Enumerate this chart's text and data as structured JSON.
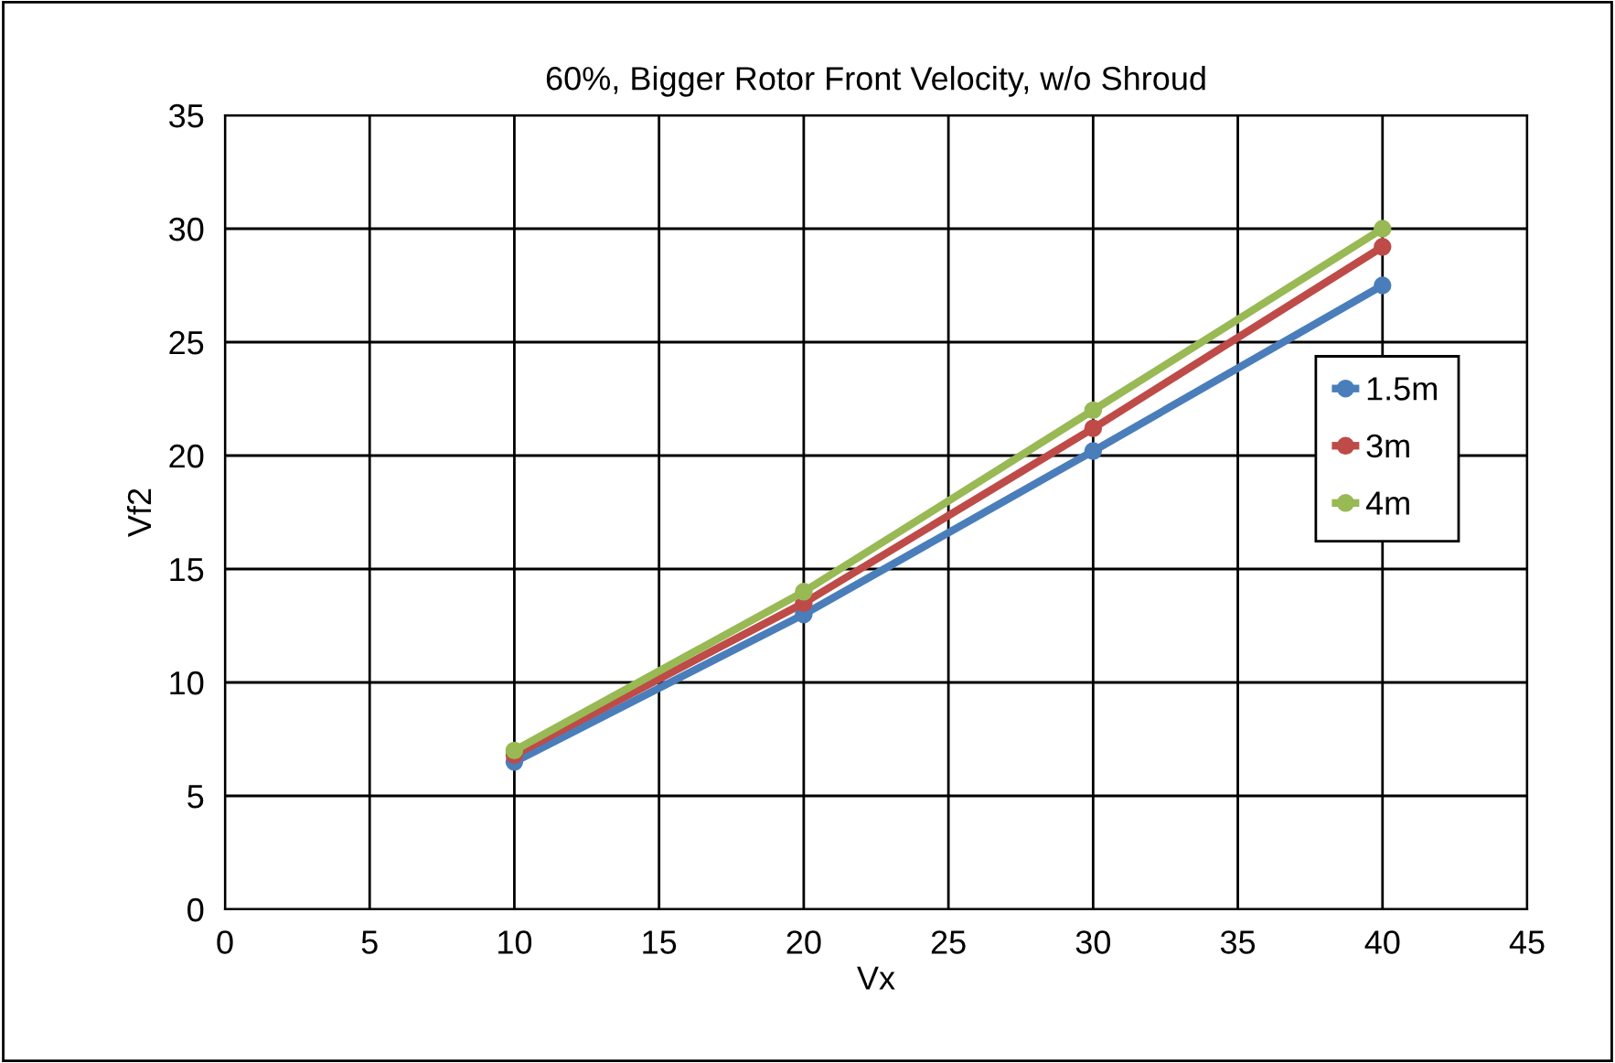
{
  "chart_data": {
    "type": "line",
    "title": "60%, Bigger Rotor Front Velocity, w/o Shroud",
    "xlabel": "Vx",
    "ylabel": "Vf2",
    "x": [
      10,
      20,
      30,
      40
    ],
    "series": [
      {
        "name": "1.5m",
        "color": "#4a7ebb",
        "values": [
          6.5,
          13.0,
          20.2,
          27.5
        ]
      },
      {
        "name": "3m",
        "color": "#be4b48",
        "values": [
          6.8,
          13.5,
          21.2,
          29.2
        ]
      },
      {
        "name": "4m",
        "color": "#98b954",
        "values": [
          7.0,
          14.0,
          22.0,
          30.0
        ]
      }
    ],
    "xlim": [
      0,
      45
    ],
    "xticks": [
      0,
      5,
      10,
      15,
      20,
      25,
      30,
      35,
      40,
      45
    ],
    "ylim": [
      0,
      35
    ],
    "yticks": [
      0,
      5,
      10,
      15,
      20,
      25,
      30,
      35
    ],
    "grid": true,
    "legend": "right",
    "marker": "circle",
    "line_style": "solid"
  }
}
